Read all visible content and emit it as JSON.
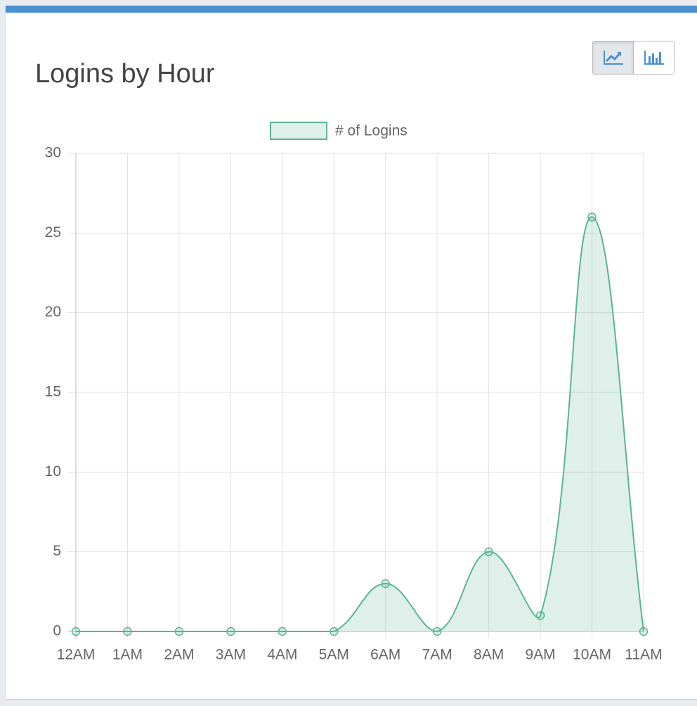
{
  "chart_data": {
    "type": "line",
    "title": "Logins by Hour",
    "categories": [
      "12AM",
      "1AM",
      "2AM",
      "3AM",
      "4AM",
      "5AM",
      "6AM",
      "7AM",
      "8AM",
      "9AM",
      "10AM",
      "11AM"
    ],
    "series": [
      {
        "name": "# of Logins",
        "color": "#5ab690",
        "values": [
          0,
          0,
          0,
          0,
          0,
          0,
          3,
          0,
          5,
          1,
          26,
          0
        ]
      }
    ],
    "ylim": [
      0,
      30
    ],
    "yticks": [
      0,
      5,
      10,
      15,
      20,
      25,
      30
    ],
    "grid": true,
    "legend": "top"
  }
}
